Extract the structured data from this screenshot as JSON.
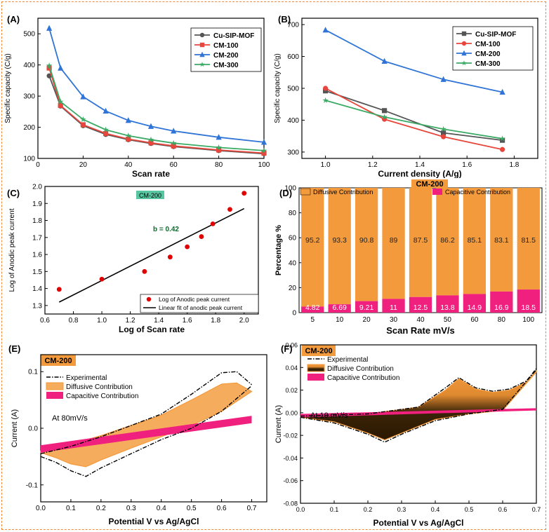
{
  "figure": {
    "colors": {
      "orange": "#f39a3d",
      "pink": "#f0207f",
      "dark": "#2b1800",
      "red": "#e8463c",
      "blue": "#2f74d6",
      "green": "#3aaa64",
      "gray": "#555555",
      "tag": "#58c6a0"
    }
  },
  "chart_data": [
    {
      "panel": "(A)",
      "type": "line",
      "xlabel": "Scan rate",
      "ylabel": "Specific capacity (C/g)",
      "xlim": [
        0,
        100
      ],
      "ylim": [
        100,
        550
      ],
      "xticks": [
        0,
        20,
        40,
        60,
        80,
        100
      ],
      "yticks": [
        100,
        200,
        300,
        400,
        500
      ],
      "legend": "top-right",
      "x": [
        5,
        10,
        20,
        30,
        40,
        50,
        60,
        80,
        100
      ],
      "series": [
        {
          "name": "Cu-SIP-MOF",
          "color": "#555555",
          "marker": "circle",
          "values": [
            365,
            268,
            205,
            177,
            160,
            148,
            138,
            125,
            115
          ]
        },
        {
          "name": "CM-100",
          "color": "#e8463c",
          "marker": "square",
          "values": [
            390,
            270,
            208,
            180,
            162,
            150,
            140,
            127,
            117
          ]
        },
        {
          "name": "CM-200",
          "color": "#2f74d6",
          "marker": "triangle",
          "values": [
            518,
            390,
            298,
            252,
            222,
            203,
            188,
            168,
            152
          ]
        },
        {
          "name": "CM-300",
          "color": "#3aaa64",
          "marker": "star",
          "values": [
            398,
            282,
            225,
            192,
            173,
            160,
            149,
            135,
            125
          ]
        }
      ]
    },
    {
      "panel": "(B)",
      "type": "line",
      "xlabel": "Current density (A/g)",
      "ylabel": "Specific capacity (C/g)",
      "xlim": [
        0.9,
        1.9
      ],
      "ylim": [
        280,
        720
      ],
      "xticks": [
        1.0,
        1.2,
        1.4,
        1.6,
        1.8
      ],
      "yticks": [
        300,
        400,
        500,
        600,
        700
      ],
      "legend": "top-right",
      "x": [
        1.0,
        1.25,
        1.5,
        1.75
      ],
      "series": [
        {
          "name": "Cu-SIP-MOF",
          "color": "#555555",
          "marker": "square",
          "values": [
            492,
            430,
            360,
            337
          ]
        },
        {
          "name": "CM-100",
          "color": "#e8463c",
          "marker": "circle",
          "values": [
            500,
            403,
            348,
            308
          ]
        },
        {
          "name": "CM-200",
          "color": "#2f74d6",
          "marker": "triangle",
          "values": [
            683,
            585,
            528,
            488
          ]
        },
        {
          "name": "CM-300",
          "color": "#3aaa64",
          "marker": "star",
          "values": [
            462,
            410,
            372,
            342
          ]
        }
      ]
    },
    {
      "panel": "(C)",
      "type": "scatter",
      "xlabel": "Log of Scan rate",
      "ylabel": "Log of Anodic peak current",
      "xlim": [
        0.6,
        2.1
      ],
      "ylim": [
        1.25,
        2.0
      ],
      "xticks": [
        0.6,
        0.8,
        1.0,
        1.2,
        1.4,
        1.6,
        1.8,
        2.0
      ],
      "yticks": [
        1.3,
        1.4,
        1.5,
        1.6,
        1.7,
        1.8,
        1.9,
        2.0
      ],
      "tag": "CM-200",
      "annotation": "b = 0.42",
      "points": {
        "name": "Log of Anodic peak current",
        "x": [
          0.7,
          1.0,
          1.3,
          1.48,
          1.6,
          1.7,
          1.78,
          1.9,
          2.0
        ],
        "y": [
          1.395,
          1.455,
          1.5,
          1.585,
          1.645,
          1.705,
          1.78,
          1.865,
          1.96
        ]
      },
      "fit": {
        "name": "Linear fit of anodic peak current",
        "x": [
          0.7,
          2.0
        ],
        "y": [
          1.32,
          1.87
        ]
      }
    },
    {
      "panel": "(D)",
      "type": "bar",
      "title": "CM-200",
      "xlabel": "Scan Rate mV/s",
      "ylabel": "Percentage %",
      "ylim": [
        0,
        100
      ],
      "yticks": [
        0,
        20,
        40,
        60,
        80,
        100
      ],
      "categories": [
        "5",
        "10",
        "20",
        "30",
        "40",
        "50",
        "60",
        "80",
        "100"
      ],
      "series": [
        {
          "name": "Capacitive  Contribution",
          "values": [
            4.82,
            6.69,
            9.21,
            11,
            12.5,
            13.8,
            14.9,
            16.9,
            18.5
          ],
          "labels": [
            "4.82",
            "6.69",
            "9.21",
            "11",
            "12.5",
            "13.8",
            "14.9",
            "16.9",
            "18.5"
          ]
        },
        {
          "name": "Diffusive Contribution",
          "values": [
            95.2,
            93.3,
            90.8,
            89,
            87.5,
            86.2,
            85.1,
            83.1,
            81.5
          ],
          "labels": [
            "95.2",
            "93.3",
            "90.8",
            "89",
            "87.5",
            "86.2",
            "85.1",
            "83.1",
            "81.5"
          ]
        }
      ]
    },
    {
      "panel": "(E)",
      "type": "area",
      "tag": "CM-200",
      "annotation": "At 80mV/s",
      "xlabel": "Potential V vs Ag/AgCl",
      "ylabel": "Current (A)",
      "xlim": [
        0,
        0.75
      ],
      "ylim": [
        -0.13,
        0.13
      ],
      "xticks": [
        0.0,
        0.1,
        0.2,
        0.3,
        0.4,
        0.5,
        0.6,
        0.7
      ],
      "yticks": [
        -0.1,
        0.0,
        0.1
      ],
      "legend": [
        "Experimental",
        "Diffusive Contribution",
        "Capacitive Contribution"
      ],
      "experimental_upper": [
        [
          0,
          -0.045
        ],
        [
          0.1,
          -0.032
        ],
        [
          0.2,
          -0.015
        ],
        [
          0.3,
          0.005
        ],
        [
          0.4,
          0.025
        ],
        [
          0.5,
          0.06
        ],
        [
          0.6,
          0.098
        ],
        [
          0.65,
          0.1
        ],
        [
          0.7,
          0.077
        ]
      ],
      "experimental_lower": [
        [
          0,
          -0.05
        ],
        [
          0.05,
          -0.06
        ],
        [
          0.1,
          -0.075
        ],
        [
          0.15,
          -0.085
        ],
        [
          0.2,
          -0.07
        ],
        [
          0.3,
          -0.045
        ],
        [
          0.4,
          -0.02
        ],
        [
          0.5,
          0.0
        ],
        [
          0.6,
          0.03
        ],
        [
          0.7,
          0.075
        ]
      ],
      "diffusive_upper": [
        [
          0,
          -0.04
        ],
        [
          0.1,
          -0.028
        ],
        [
          0.2,
          -0.013
        ],
        [
          0.3,
          0.005
        ],
        [
          0.4,
          0.023
        ],
        [
          0.5,
          0.05
        ],
        [
          0.6,
          0.078
        ],
        [
          0.65,
          0.08
        ],
        [
          0.7,
          0.065
        ]
      ],
      "diffusive_lower": [
        [
          0,
          -0.043
        ],
        [
          0.05,
          -0.052
        ],
        [
          0.1,
          -0.063
        ],
        [
          0.15,
          -0.068
        ],
        [
          0.2,
          -0.056
        ],
        [
          0.3,
          -0.035
        ],
        [
          0.4,
          -0.015
        ],
        [
          0.5,
          0.005
        ],
        [
          0.6,
          0.03
        ],
        [
          0.7,
          0.065
        ]
      ],
      "capacitive_upper": [
        [
          0,
          -0.03
        ],
        [
          0.7,
          0.022
        ]
      ],
      "capacitive_lower": [
        [
          0,
          -0.043
        ],
        [
          0.7,
          0.009
        ]
      ]
    },
    {
      "panel": "(F)",
      "type": "area",
      "tag": "CM-200",
      "annotation": "At 10 mV/s",
      "xlabel": "Potential V vs Ag/AgCl",
      "ylabel": "Current (A)",
      "xlim": [
        0,
        0.7
      ],
      "ylim": [
        -0.08,
        0.06
      ],
      "xticks": [
        0.0,
        0.1,
        0.2,
        0.3,
        0.4,
        0.5,
        0.6,
        0.7
      ],
      "yticks": [
        -0.08,
        -0.06,
        -0.04,
        -0.02,
        0.0,
        0.02,
        0.04,
        0.06
      ],
      "legend": [
        "Experimental",
        "Diffusive Contribution",
        "Capacitive Contribution"
      ],
      "experimental_upper": [
        [
          0,
          -0.003
        ],
        [
          0.2,
          -0.001
        ],
        [
          0.35,
          0.005
        ],
        [
          0.43,
          0.022
        ],
        [
          0.47,
          0.031
        ],
        [
          0.52,
          0.022
        ],
        [
          0.57,
          0.019
        ],
        [
          0.62,
          0.021
        ],
        [
          0.67,
          0.028
        ],
        [
          0.7,
          0.039
        ]
      ],
      "experimental_lower": [
        [
          0,
          -0.004
        ],
        [
          0.1,
          -0.009
        ],
        [
          0.2,
          -0.019
        ],
        [
          0.25,
          -0.026
        ],
        [
          0.3,
          -0.019
        ],
        [
          0.4,
          -0.007
        ],
        [
          0.5,
          -0.001
        ],
        [
          0.6,
          0.003
        ],
        [
          0.7,
          0.038
        ]
      ],
      "diffusive_upper": [
        [
          0,
          -0.003
        ],
        [
          0.2,
          -0.001
        ],
        [
          0.35,
          0.005
        ],
        [
          0.43,
          0.02
        ],
        [
          0.47,
          0.03
        ],
        [
          0.52,
          0.021
        ],
        [
          0.57,
          0.018
        ],
        [
          0.62,
          0.02
        ],
        [
          0.67,
          0.027
        ],
        [
          0.7,
          0.037
        ]
      ],
      "diffusive_lower": [
        [
          0,
          -0.004
        ],
        [
          0.1,
          -0.008
        ],
        [
          0.2,
          -0.018
        ],
        [
          0.25,
          -0.024
        ],
        [
          0.3,
          -0.018
        ],
        [
          0.4,
          -0.006
        ],
        [
          0.5,
          -0.001
        ],
        [
          0.6,
          0.002
        ],
        [
          0.7,
          0.036
        ]
      ],
      "capacitive_upper": [
        [
          0,
          -0.001
        ],
        [
          0.7,
          0.004
        ]
      ],
      "capacitive_lower": [
        [
          0,
          -0.004
        ],
        [
          0.7,
          0.002
        ]
      ]
    }
  ]
}
